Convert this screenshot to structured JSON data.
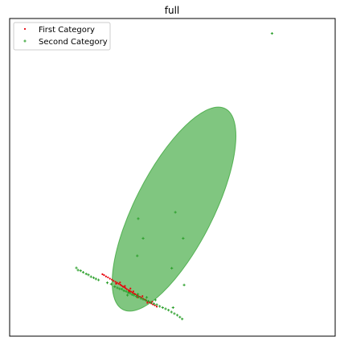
{
  "chart_data": {
    "type": "scatter",
    "title": "full",
    "xlabel": "",
    "ylabel": "",
    "axis_ticks_visible": false,
    "grid": false,
    "legend_position": "top-left",
    "xlim": [
      0,
      100
    ],
    "ylim": [
      0,
      100
    ],
    "series": [
      {
        "name": "First Category",
        "color": "#e8000b",
        "marker": "dot",
        "points": [
          [
            28.5,
            19.5
          ],
          [
            29.0,
            19.2
          ],
          [
            29.6,
            18.8
          ],
          [
            30.2,
            18.5
          ],
          [
            30.8,
            18.1
          ],
          [
            31.4,
            17.8
          ],
          [
            31.9,
            17.4
          ],
          [
            32.5,
            17.1
          ],
          [
            33.0,
            16.8
          ],
          [
            33.5,
            16.5
          ],
          [
            34.0,
            16.2
          ],
          [
            34.4,
            15.9
          ],
          [
            34.8,
            15.6
          ],
          [
            35.2,
            15.4
          ],
          [
            35.6,
            15.1
          ],
          [
            36.0,
            14.8
          ],
          [
            36.5,
            14.5
          ],
          [
            36.9,
            14.3
          ],
          [
            37.3,
            14.0
          ],
          [
            37.8,
            13.7
          ],
          [
            38.2,
            13.4
          ],
          [
            38.6,
            13.2
          ],
          [
            39.1,
            12.9
          ],
          [
            39.5,
            12.6
          ],
          [
            40.0,
            12.4
          ],
          [
            40.5,
            12.1
          ],
          [
            41.0,
            11.8
          ],
          [
            41.5,
            11.5
          ],
          [
            42.0,
            11.2
          ],
          [
            42.5,
            10.9
          ],
          [
            43.0,
            10.6
          ],
          [
            43.5,
            10.3
          ],
          [
            44.0,
            10.0
          ],
          [
            44.6,
            9.7
          ],
          [
            45.2,
            9.3
          ],
          [
            32.7,
            16.5
          ],
          [
            33.9,
            16.9
          ],
          [
            35.4,
            15.8
          ],
          [
            36.7,
            14.0
          ],
          [
            38.0,
            14.1
          ],
          [
            39.3,
            12.2
          ],
          [
            40.8,
            12.6
          ],
          [
            42.3,
            10.5
          ],
          [
            43.8,
            10.8
          ],
          [
            37.1,
            15.0
          ]
        ]
      },
      {
        "name": "Second Category",
        "color": "#2ca02c",
        "marker": "plus",
        "points": [
          [
            20.5,
            21.5
          ],
          [
            21.0,
            20.8
          ],
          [
            21.8,
            20.6
          ],
          [
            22.6,
            20.1
          ],
          [
            23.5,
            19.6
          ],
          [
            24.2,
            19.3
          ],
          [
            25.0,
            18.7
          ],
          [
            25.8,
            18.4
          ],
          [
            26.5,
            18.0
          ],
          [
            27.3,
            17.7
          ],
          [
            30.0,
            16.8
          ],
          [
            31.2,
            16.4
          ],
          [
            32.3,
            15.6
          ],
          [
            33.1,
            15.2
          ],
          [
            33.8,
            14.9
          ],
          [
            34.5,
            14.8
          ],
          [
            35.1,
            14.3
          ],
          [
            35.8,
            14.1
          ],
          [
            36.4,
            13.7
          ],
          [
            37.0,
            13.5
          ],
          [
            37.6,
            13.1
          ],
          [
            38.2,
            12.9
          ],
          [
            38.9,
            12.5
          ],
          [
            39.6,
            12.3
          ],
          [
            40.3,
            11.9
          ],
          [
            41.0,
            11.6
          ],
          [
            41.8,
            11.3
          ],
          [
            42.6,
            11.0
          ],
          [
            43.4,
            10.6
          ],
          [
            44.3,
            10.2
          ],
          [
            45.2,
            9.9
          ],
          [
            46.1,
            9.4
          ],
          [
            47.0,
            9.0
          ],
          [
            47.9,
            8.6
          ],
          [
            48.8,
            8.2
          ],
          [
            49.7,
            7.6
          ],
          [
            50.6,
            7.1
          ],
          [
            51.5,
            6.6
          ],
          [
            52.3,
            6.0
          ],
          [
            53.0,
            5.4
          ],
          [
            36.2,
            12.9
          ],
          [
            39.4,
            13.2
          ],
          [
            42.1,
            12.2
          ],
          [
            44.8,
            11.4
          ],
          [
            50.2,
            9.0
          ],
          [
            39.5,
            37.0
          ],
          [
            50.9,
            39.0
          ],
          [
            41.0,
            30.8
          ],
          [
            53.3,
            30.8
          ],
          [
            39.2,
            25.3
          ],
          [
            49.8,
            21.4
          ],
          [
            53.6,
            16.1
          ],
          [
            80.6,
            95.3
          ]
        ]
      }
    ],
    "ellipses": [
      {
        "series": "Second Category",
        "center": [
          50.5,
          40.0
        ],
        "width_data": 24.0,
        "height_data": 71.0,
        "angle_deg": -27.0,
        "color": "#2ca02c",
        "alpha": 0.6
      }
    ]
  }
}
